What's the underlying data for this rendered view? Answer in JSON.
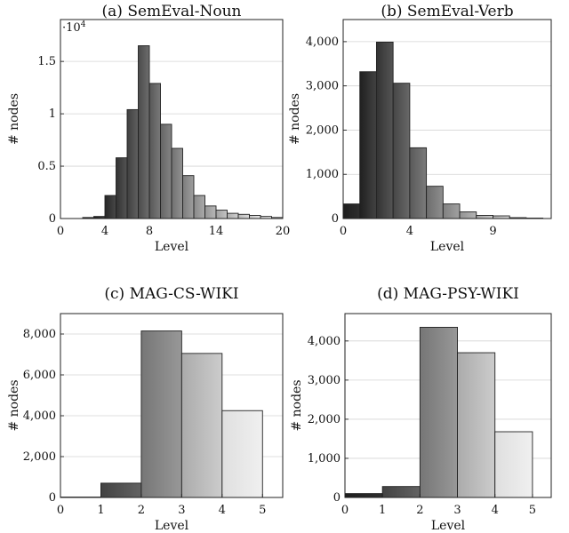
{
  "chart_data": [
    {
      "type": "bar",
      "title": "(a) SemEval-Noun",
      "xlabel": "Level",
      "ylabel": "# nodes",
      "multiplier_label": "·10",
      "multiplier_exp": "4",
      "xlim": [
        0,
        20
      ],
      "ylim": [
        0,
        1.9
      ],
      "xticks": [
        0,
        4,
        8,
        14,
        20
      ],
      "yticks": [
        0,
        0.5,
        1,
        1.5
      ],
      "ytick_labels": [
        "0",
        "0.5",
        "1",
        "1.5"
      ],
      "grid": true,
      "bin_width": 1,
      "x": [
        2,
        3,
        4,
        5,
        6,
        7,
        8,
        9,
        10,
        11,
        12,
        13,
        14,
        15,
        16,
        17,
        18,
        19
      ],
      "values": [
        0.01,
        0.02,
        0.22,
        0.58,
        1.04,
        1.65,
        1.29,
        0.9,
        0.67,
        0.41,
        0.22,
        0.12,
        0.08,
        0.05,
        0.04,
        0.03,
        0.02,
        0.01
      ]
    },
    {
      "type": "bar",
      "title": "(b) SemEval-Verb",
      "xlabel": "Level",
      "ylabel": "# nodes",
      "xlim": [
        0,
        12.5
      ],
      "ylim": [
        0,
        4500
      ],
      "xticks": [
        0,
        4,
        9
      ],
      "yticks": [
        0,
        1000,
        2000,
        3000,
        4000
      ],
      "ytick_labels": [
        "0",
        "1,000",
        "2,000",
        "3,000",
        "4,000"
      ],
      "grid": true,
      "bin_width": 1,
      "x": [
        0,
        1,
        2,
        3,
        4,
        5,
        6,
        7,
        8,
        9,
        10,
        11
      ],
      "values": [
        330,
        3320,
        3990,
        3060,
        1600,
        730,
        330,
        150,
        70,
        60,
        20,
        10
      ]
    },
    {
      "type": "bar",
      "title": "(c) MAG-CS-WIKI",
      "xlabel": "Level",
      "ylabel": "# nodes",
      "xlim": [
        0,
        5.5
      ],
      "ylim": [
        0,
        9000
      ],
      "xticks": [
        0,
        1,
        2,
        3,
        4,
        5
      ],
      "yticks": [
        0,
        2000,
        4000,
        6000,
        8000
      ],
      "ytick_labels": [
        "0",
        "2,000",
        "4,000",
        "6,000",
        "8,000"
      ],
      "grid": true,
      "bin_width": 1,
      "x": [
        0,
        1,
        2,
        3,
        4
      ],
      "values": [
        20,
        700,
        8150,
        7050,
        4250
      ]
    },
    {
      "type": "bar",
      "title": "(d) MAG-PSY-WIKI",
      "xlabel": "Level",
      "ylabel": "# nodes",
      "xlim": [
        0,
        5.5
      ],
      "ylim": [
        0,
        4700
      ],
      "xticks": [
        0,
        1,
        2,
        3,
        4,
        5
      ],
      "yticks": [
        0,
        1000,
        2000,
        3000,
        4000
      ],
      "ytick_labels": [
        "0",
        "1,000",
        "2,000",
        "3,000",
        "4,000"
      ],
      "grid": true,
      "bin_width": 1,
      "x": [
        0,
        1,
        2,
        3,
        4
      ],
      "values": [
        100,
        280,
        4350,
        3700,
        1680
      ]
    }
  ]
}
